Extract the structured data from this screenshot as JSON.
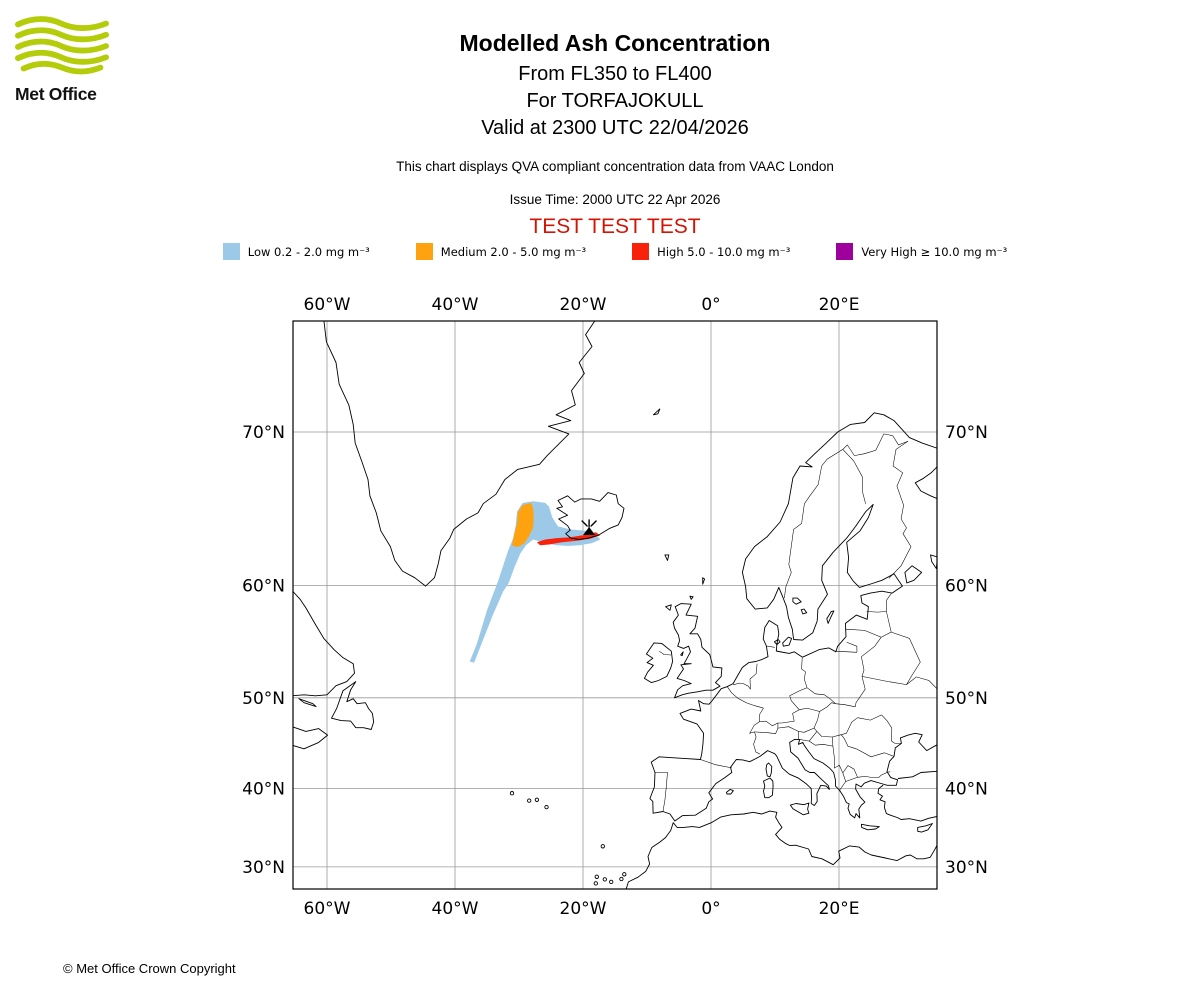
{
  "branding": {
    "logo_text": "Met Office",
    "logo_green": "#B4CC0A"
  },
  "header": {
    "title": "Modelled Ash Concentration",
    "subtitle_fl": "From FL350 to FL400",
    "subtitle_volcano": "For TORFAJOKULL",
    "subtitle_valid": "Valid at 2300 UTC 22/04/2026",
    "note": "This chart displays QVA compliant concentration data from VAAC London",
    "issue_time": "Issue Time: 2000 UTC 22 Apr 2026",
    "test_banner": "TEST TEST TEST",
    "test_color": "#D21404"
  },
  "legend": {
    "items": [
      {
        "key": "low",
        "label": "Low 0.2 - 2.0 mg m⁻³",
        "color": "#9CC9E8"
      },
      {
        "key": "medium",
        "label": "Medium 2.0 - 5.0 mg m⁻³",
        "color": "#FFA210"
      },
      {
        "key": "high",
        "label": "High 5.0 - 10.0 mg m⁻³",
        "color": "#F8220B"
      },
      {
        "key": "very-high",
        "label": "Very High ≥ 10.0 mg m⁻³",
        "color": "#9E009E"
      }
    ]
  },
  "map": {
    "lon_ticks": [
      {
        "label": "60°W",
        "lon": -60
      },
      {
        "label": "40°W",
        "lon": -40
      },
      {
        "label": "20°W",
        "lon": -20
      },
      {
        "label": "0°",
        "lon": 0
      },
      {
        "label": "20°E",
        "lon": 20
      }
    ],
    "lat_ticks": [
      {
        "label": "70°N",
        "lat": 70
      },
      {
        "label": "60°N",
        "lat": 60
      },
      {
        "label": "50°N",
        "lat": 50
      },
      {
        "label": "40°N",
        "lat": 40
      },
      {
        "label": "30°N",
        "lat": 30
      }
    ]
  },
  "chart_data": {
    "type": "map-contours",
    "projection": "mercator",
    "extent": {
      "lon_min": -65.3,
      "lon_max": 35.3,
      "lat_min": 26.9,
      "lat_max": 75.3
    },
    "volcano": {
      "name": "TORFAJOKULL",
      "lon": -19.05,
      "lat": 63.92
    },
    "contours": [
      {
        "level": "low",
        "range_mg_m3": "0.2 - 2.0",
        "color": "#9CC9E8",
        "polygon": [
          [
            -25.9,
            65.85
          ],
          [
            -27.8,
            65.95
          ],
          [
            -29.4,
            65.85
          ],
          [
            -30.3,
            65.3
          ],
          [
            -30.5,
            64.4
          ],
          [
            -30.9,
            63.5
          ],
          [
            -31.7,
            62.6
          ],
          [
            -33.3,
            60.3
          ],
          [
            -35.0,
            58.0
          ],
          [
            -36.6,
            55.1
          ],
          [
            -37.7,
            53.5
          ],
          [
            -37.0,
            53.4
          ],
          [
            -35.8,
            55.2
          ],
          [
            -34.1,
            57.6
          ],
          [
            -32.5,
            59.5
          ],
          [
            -31.6,
            60.2
          ],
          [
            -30.7,
            61.4
          ],
          [
            -29.8,
            62.4
          ],
          [
            -28.9,
            63.0
          ],
          [
            -27.8,
            63.4
          ],
          [
            -26.3,
            63.2
          ],
          [
            -24.2,
            63.0
          ],
          [
            -22.3,
            62.95
          ],
          [
            -20.5,
            63.0
          ],
          [
            -18.6,
            63.15
          ],
          [
            -17.3,
            63.4
          ],
          [
            -18.0,
            63.75
          ],
          [
            -19.7,
            64.0
          ],
          [
            -22.0,
            64.1
          ],
          [
            -23.9,
            64.3
          ],
          [
            -24.8,
            64.9
          ],
          [
            -25.3,
            65.6
          ]
        ]
      },
      {
        "level": "medium",
        "range_mg_m3": "2.0 - 5.0",
        "color": "#FFA210",
        "polygon": [
          [
            -28.1,
            65.85
          ],
          [
            -29.5,
            65.7
          ],
          [
            -30.2,
            65.2
          ],
          [
            -30.3,
            64.5
          ],
          [
            -30.8,
            63.7
          ],
          [
            -31.1,
            63.0
          ],
          [
            -30.3,
            62.85
          ],
          [
            -29.2,
            63.1
          ],
          [
            -28.4,
            63.65
          ],
          [
            -27.8,
            64.2
          ],
          [
            -27.7,
            64.9
          ],
          [
            -27.8,
            65.5
          ]
        ]
      },
      {
        "level": "high",
        "range_mg_m3": "5.0 - 10.0",
        "color": "#F8220B",
        "polygon": [
          [
            -27.2,
            63.2
          ],
          [
            -25.9,
            63.4
          ],
          [
            -24.1,
            63.5
          ],
          [
            -22.0,
            63.55
          ],
          [
            -20.0,
            63.7
          ],
          [
            -18.0,
            63.9
          ],
          [
            -17.3,
            63.7
          ],
          [
            -18.9,
            63.45
          ],
          [
            -21.1,
            63.3
          ],
          [
            -23.3,
            63.2
          ],
          [
            -25.3,
            63.05
          ],
          [
            -26.7,
            63.0
          ]
        ]
      }
    ]
  },
  "footer": {
    "copyright": "© Met Office Crown Copyright"
  }
}
